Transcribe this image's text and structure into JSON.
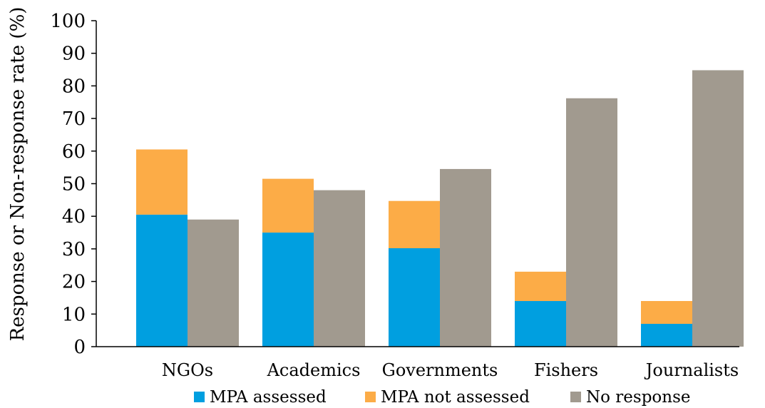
{
  "chart_data": {
    "type": "bar",
    "title": "",
    "xlabel": "",
    "ylabel": "Response or Non-response rate (%)",
    "ylim": [
      0,
      100
    ],
    "yticks": [
      0,
      10,
      20,
      30,
      40,
      50,
      60,
      70,
      80,
      90,
      100
    ],
    "categories": [
      "NGOs",
      "Academics",
      "Governments",
      "Fishers",
      "Journalists"
    ],
    "stacked_response": {
      "assessed": [
        40.5,
        35,
        30.2,
        14,
        7
      ],
      "not_assessed": [
        20,
        16.5,
        14.5,
        9,
        7
      ]
    },
    "no_response": [
      39,
      48,
      54.5,
      76.2,
      84.8
    ],
    "series": [
      {
        "name": "MPA assessed",
        "color": "#009fe0"
      },
      {
        "name": "MPA not assessed",
        "color": "#fcac47"
      },
      {
        "name": "No response",
        "color": "#a19a8f"
      }
    ],
    "grid": false,
    "legend_position": "bottom"
  }
}
